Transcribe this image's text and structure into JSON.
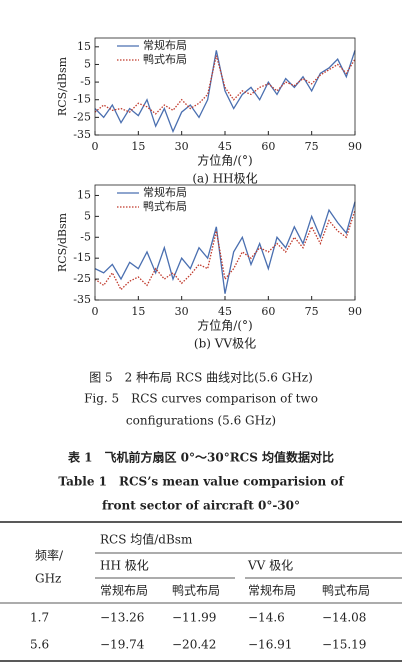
{
  "chart_data": [
    {
      "type": "line",
      "subtitle": "(a) HH极化",
      "xlabel": "方位角/(°)",
      "ylabel": "RCS/dBsm",
      "x": [
        0,
        3,
        6,
        9,
        12,
        15,
        18,
        21,
        24,
        27,
        30,
        33,
        36,
        39,
        42,
        45,
        48,
        51,
        54,
        57,
        60,
        63,
        66,
        69,
        72,
        75,
        78,
        81,
        84,
        87,
        90
      ],
      "series": [
        {
          "name": "常规布局",
          "color": "#4a6fb0",
          "linestyle": "solid",
          "values": [
            -20,
            -25,
            -18,
            -28,
            -20,
            -24,
            -15,
            -30,
            -20,
            -33,
            -22,
            -18,
            -25,
            -15,
            13,
            -10,
            -20,
            -12,
            -8,
            -15,
            -5,
            -12,
            -3,
            -8,
            -2,
            -10,
            0,
            3,
            8,
            -2,
            13
          ]
        },
        {
          "name": "鸭式布局",
          "color": "#c0392b",
          "linestyle": "dotted",
          "values": [
            -22,
            -18,
            -21,
            -20,
            -22,
            -17,
            -19,
            -23,
            -18,
            -21,
            -15,
            -20,
            -17,
            -12,
            10,
            -8,
            -15,
            -10,
            -12,
            -8,
            -6,
            -10,
            -5,
            -7,
            -3,
            -6,
            -1,
            2,
            5,
            0,
            8
          ]
        }
      ],
      "xlim": [
        0,
        90
      ],
      "xticks": [
        0,
        15,
        30,
        45,
        60,
        75,
        90
      ],
      "ylim": [
        -35,
        20
      ],
      "yticks": [
        -35,
        -25,
        -15,
        -5,
        5,
        15
      ],
      "legend": "upper left"
    },
    {
      "type": "line",
      "subtitle": "(b) VV极化",
      "xlabel": "方位角/(°)",
      "ylabel": "RCS/dBsm",
      "x": [
        0,
        3,
        6,
        9,
        12,
        15,
        18,
        21,
        24,
        27,
        30,
        33,
        36,
        39,
        42,
        45,
        48,
        51,
        54,
        57,
        60,
        63,
        66,
        69,
        72,
        75,
        78,
        81,
        84,
        87,
        90
      ],
      "series": [
        {
          "name": "常规布局",
          "color": "#4a6fb0",
          "linestyle": "solid",
          "values": [
            -20,
            -22,
            -18,
            -25,
            -17,
            -20,
            -12,
            -22,
            -10,
            -25,
            -15,
            -20,
            -10,
            -15,
            0,
            -32,
            -12,
            -5,
            -18,
            -8,
            -20,
            -5,
            -10,
            0,
            -8,
            5,
            -5,
            8,
            2,
            -3,
            12
          ]
        },
        {
          "name": "鸭式布局",
          "color": "#c0392b",
          "linestyle": "dotted",
          "values": [
            -25,
            -28,
            -22,
            -30,
            -26,
            -24,
            -28,
            -20,
            -25,
            -22,
            -27,
            -23,
            -18,
            -20,
            -2,
            -25,
            -20,
            -12,
            -15,
            -10,
            -12,
            -8,
            -12,
            -5,
            -10,
            0,
            -8,
            3,
            -2,
            -5,
            8
          ]
        }
      ],
      "xlim": [
        0,
        90
      ],
      "xticks": [
        0,
        15,
        30,
        45,
        60,
        75,
        90
      ],
      "ylim": [
        -35,
        20
      ],
      "yticks": [
        -35,
        -25,
        -15,
        -5,
        5,
        15
      ],
      "legend": "upper left"
    }
  ],
  "figure": {
    "caption_cn": "图 5　2 种布局 RCS 曲线对比(5.6 GHz)",
    "caption_en": [
      "Fig. 5　RCS curves comparison of two",
      "configurations (5.6 GHz)"
    ]
  },
  "table": {
    "title_cn": "表 1　飞机前方扇区 0°～30°RCS 均值数据对比",
    "title_en": [
      "Table 1　RCS’s mean value comparision of",
      "front sector of aircraft 0°-30°"
    ],
    "header": {
      "freq": [
        "频率/",
        "GHz"
      ],
      "group": "RCS 均值/dBsm",
      "pols": [
        "HH 极化",
        "VV 极化"
      ],
      "layouts": [
        "常规布局",
        "鸭式布局",
        "常规布局",
        "鸭式布局"
      ]
    },
    "rows": [
      [
        "1.7",
        "−13.26",
        "−11.99",
        "−14.6",
        "−14.08"
      ],
      [
        "5.6",
        "−19.74",
        "−20.42",
        "−16.91",
        "−15.19"
      ]
    ]
  }
}
